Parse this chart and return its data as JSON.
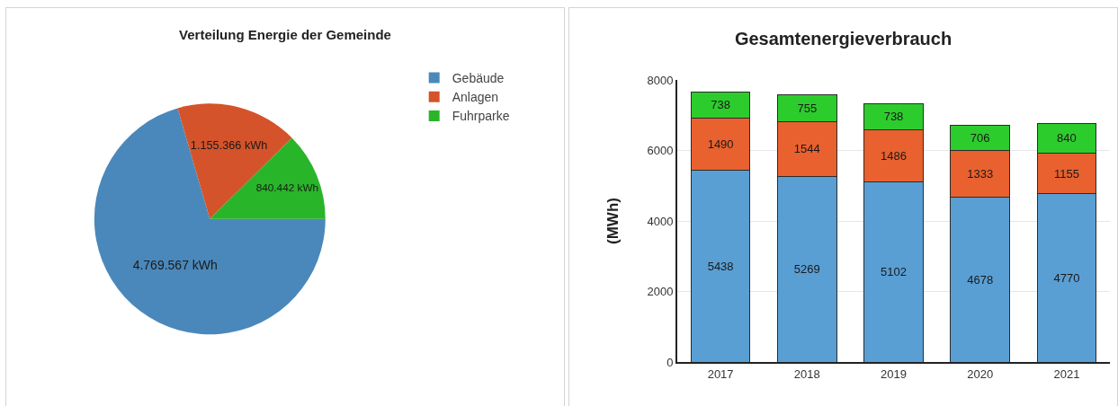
{
  "chart_data": [
    {
      "type": "pie",
      "title": "Verteilung Energie der Gemeinde",
      "categories": [
        "Gebäude",
        "Anlagen",
        "Fuhrparke"
      ],
      "values": [
        4769567,
        1155366,
        840442
      ],
      "value_labels": [
        "4.769.567 kWh",
        "1.155.366 kWh",
        "840.442 kWh"
      ],
      "colors": [
        "#4a88bb",
        "#d4532a",
        "#29b529"
      ],
      "legend": "top right"
    },
    {
      "type": "bar",
      "title": "Gesamtenergieverbrauch",
      "ylabel": "(MWh)",
      "categories": [
        "2017",
        "2018",
        "2019",
        "2020",
        "2021"
      ],
      "series": [
        {
          "color": "#5a9fd4",
          "values": [
            5438,
            5269,
            5102,
            4678,
            4770
          ]
        },
        {
          "color": "#e8612f",
          "values": [
            1490,
            1544,
            1486,
            1333,
            1155
          ]
        },
        {
          "color": "#2dcc2d",
          "values": [
            738,
            755,
            738,
            706,
            840
          ]
        }
      ],
      "stacked": true,
      "data_labels": true,
      "ylim": [
        0,
        8000
      ],
      "yticks": [
        0,
        2000,
        4000,
        6000,
        8000
      ],
      "grid": "y",
      "legend": false
    }
  ]
}
